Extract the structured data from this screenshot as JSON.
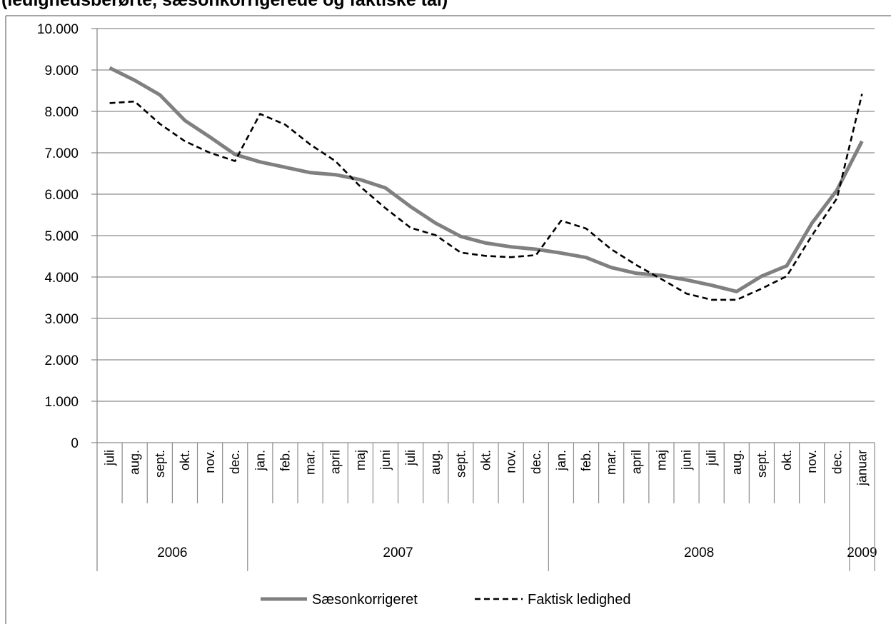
{
  "chart_data": {
    "type": "line",
    "title": "(ledighedsberørte, sæsonkorrigerede og faktiske tal)",
    "xlabel": "",
    "ylabel": "",
    "ylim": [
      0,
      10000
    ],
    "yticks": [
      0,
      1000,
      2000,
      3000,
      4000,
      5000,
      6000,
      7000,
      8000,
      9000,
      10000
    ],
    "ytick_labels": [
      "0",
      "1.000",
      "2.000",
      "3.000",
      "4.000",
      "5.000",
      "6.000",
      "7.000",
      "8.000",
      "9.000",
      "10.000"
    ],
    "categories": [
      "juli",
      "aug.",
      "sept.",
      "okt.",
      "nov.",
      "dec.",
      "jan.",
      "feb.",
      "mar.",
      "april",
      "maj",
      "juni",
      "juli",
      "aug.",
      "sept.",
      "okt.",
      "nov.",
      "dec.",
      "jan.",
      "feb.",
      "mar.",
      "april",
      "maj",
      "juni",
      "juli",
      "aug.",
      "sept.",
      "okt.",
      "nov.",
      "dec.",
      "januar"
    ],
    "year_groups": [
      {
        "label": "2006",
        "count": 6
      },
      {
        "label": "2007",
        "count": 12
      },
      {
        "label": "2008",
        "count": 12
      },
      {
        "label": "2009",
        "count": 1
      }
    ],
    "series": [
      {
        "name": "Sæsonkorrigeret",
        "color": "#808080",
        "style": "solid",
        "values": [
          9050,
          8750,
          8400,
          7780,
          7380,
          6960,
          6780,
          6650,
          6520,
          6470,
          6350,
          6150,
          5700,
          5300,
          4980,
          4820,
          4730,
          4670,
          4580,
          4470,
          4230,
          4090,
          4040,
          3930,
          3800,
          3650,
          4020,
          4270,
          5300,
          6100,
          7280
        ]
      },
      {
        "name": "Faktisk ledighed",
        "color": "#000000",
        "style": "dashed",
        "values": [
          8200,
          8240,
          7700,
          7280,
          7000,
          6800,
          7940,
          7680,
          7200,
          6800,
          6180,
          5660,
          5190,
          5010,
          4590,
          4510,
          4480,
          4530,
          5360,
          5170,
          4670,
          4290,
          3950,
          3600,
          3450,
          3450,
          3720,
          4020,
          5000,
          5900,
          8420
        ]
      }
    ],
    "grid": "horizontal",
    "legend_position": "bottom"
  }
}
